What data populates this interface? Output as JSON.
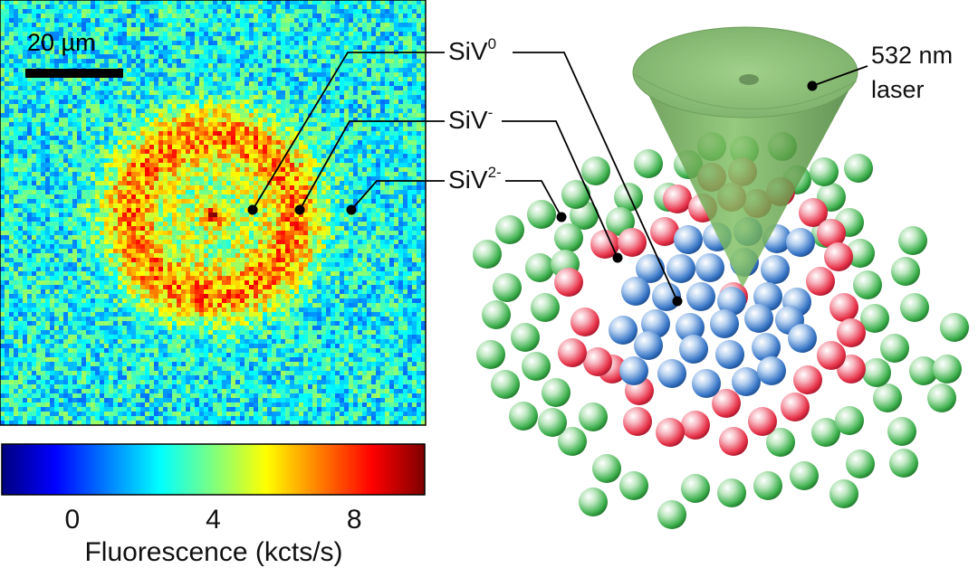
{
  "fluorescence_map": {
    "scale_bar_label": "20 µm"
  },
  "colorbar": {
    "ticks": [
      {
        "label": "0",
        "value": 0
      },
      {
        "label": "4",
        "value": 4
      },
      {
        "label": "8",
        "value": 8
      }
    ],
    "range": [
      -2.0,
      10.0
    ],
    "title": "Fluorescence (kcts/s)",
    "colormap": [
      "#00007f",
      "#0000ff",
      "#007fff",
      "#00ffff",
      "#7fff7f",
      "#ffff00",
      "#ff7f00",
      "#ff0000",
      "#7f0000"
    ]
  },
  "charge_states": [
    {
      "base": "SiV",
      "sup": "0",
      "name": "SiV0",
      "color": "#3a78c8"
    },
    {
      "base": "SiV",
      "sup": "-",
      "name": "SiV-",
      "color": "#e8334a"
    },
    {
      "base": "SiV",
      "sup": "2-",
      "name": "SiV2-",
      "color": "#3fb24f"
    }
  ],
  "laser": {
    "line1": "532 nm",
    "line2": "laser",
    "color": "#6aa84f"
  }
}
